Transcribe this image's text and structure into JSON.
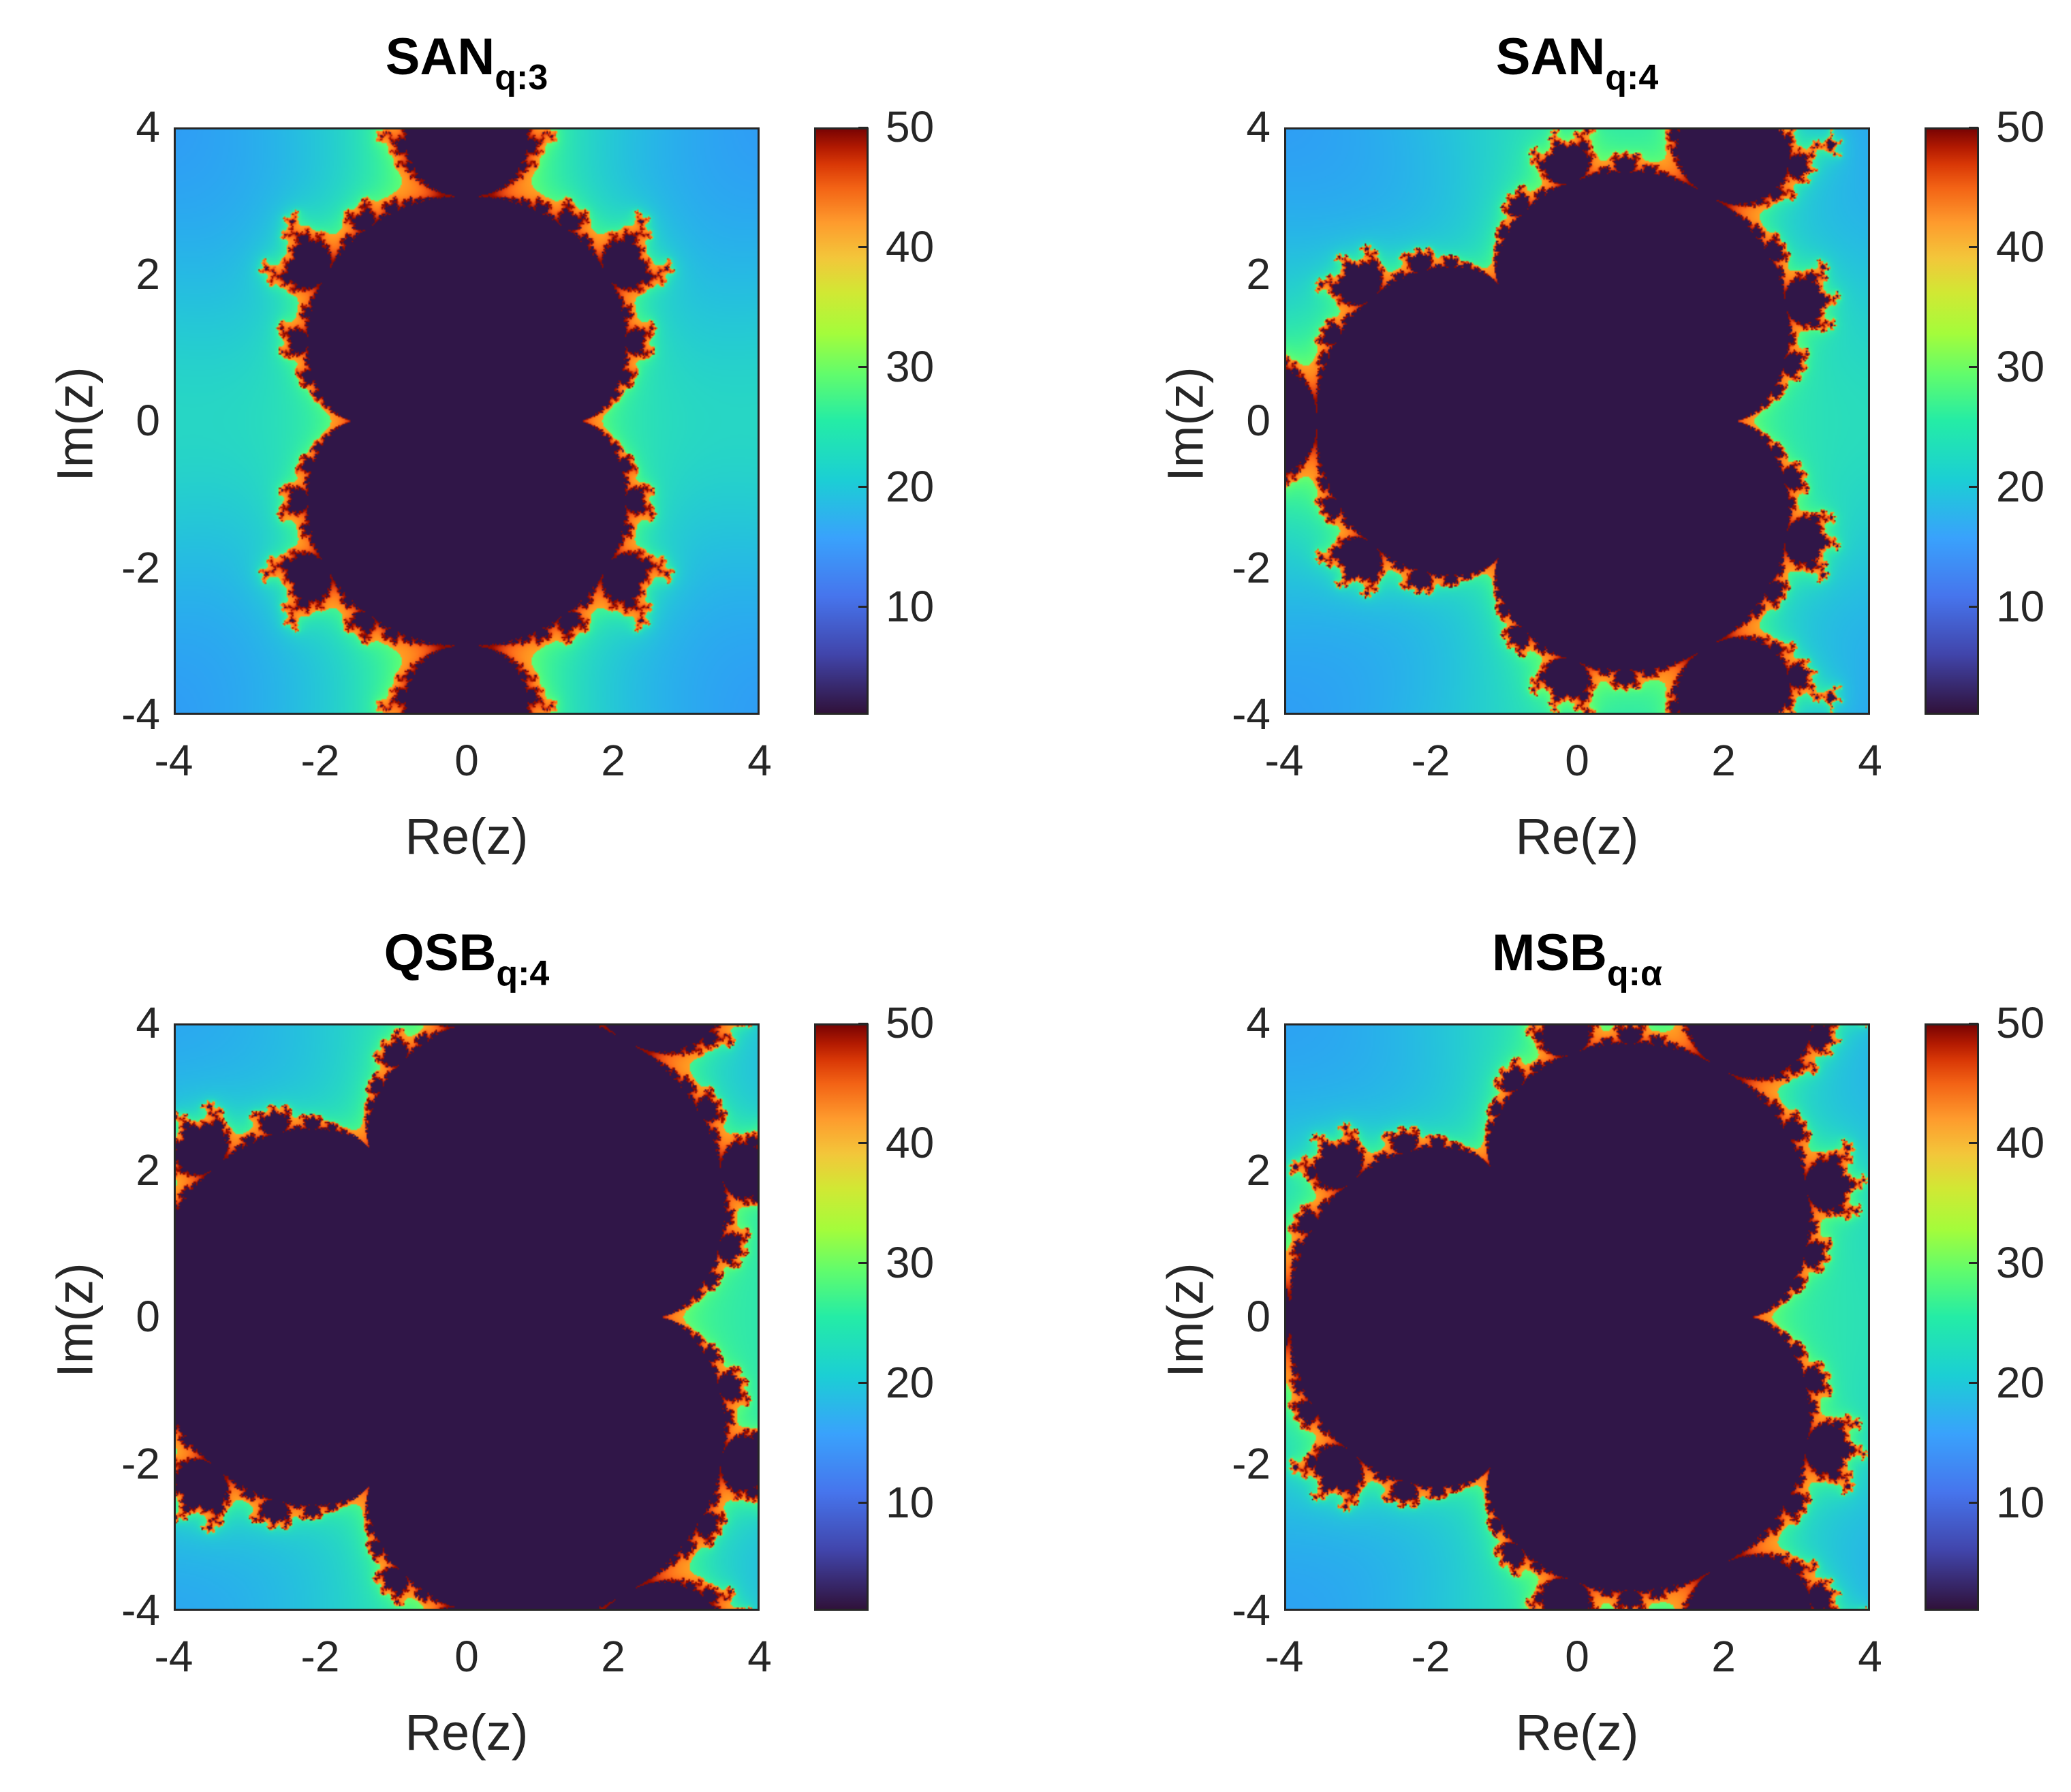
{
  "chart_data": [
    {
      "type": "heatmap",
      "title": "SAN",
      "title_subscript": "q:3",
      "xlabel": "Re(z)",
      "ylabel": "Im(z)",
      "xlim": [
        -4,
        4
      ],
      "ylim": [
        -4,
        4
      ],
      "xticks": [
        "-4",
        "-2",
        "0",
        "2",
        "4"
      ],
      "yticks": [
        "4",
        "2",
        "0",
        "-2",
        "-4"
      ],
      "colorbar": {
        "range": [
          1,
          50
        ],
        "ticks": [
          "50",
          "40",
          "30",
          "20",
          "10"
        ],
        "colormap": "turbo"
      },
      "variant": "san3"
    },
    {
      "type": "heatmap",
      "title": "SAN",
      "title_subscript": "q:4",
      "xlabel": "Re(z)",
      "ylabel": "Im(z)",
      "xlim": [
        -4,
        4
      ],
      "ylim": [
        -4,
        4
      ],
      "xticks": [
        "-4",
        "-2",
        "0",
        "2",
        "4"
      ],
      "yticks": [
        "4",
        "2",
        "0",
        "-2",
        "-4"
      ],
      "colorbar": {
        "range": [
          1,
          50
        ],
        "ticks": [
          "50",
          "40",
          "30",
          "20",
          "10"
        ],
        "colormap": "turbo"
      },
      "variant": "san4"
    },
    {
      "type": "heatmap",
      "title": "QSB",
      "title_subscript": "q:4",
      "xlabel": "Re(z)",
      "ylabel": "Im(z)",
      "xlim": [
        -4,
        4
      ],
      "ylim": [
        -4,
        4
      ],
      "xticks": [
        "-4",
        "-2",
        "0",
        "2",
        "4"
      ],
      "yticks": [
        "4",
        "2",
        "0",
        "-2",
        "-4"
      ],
      "colorbar": {
        "range": [
          1,
          50
        ],
        "ticks": [
          "50",
          "40",
          "30",
          "20",
          "10"
        ],
        "colormap": "turbo"
      },
      "variant": "qsb"
    },
    {
      "type": "heatmap",
      "title": "MSB",
      "title_subscript": "q:α",
      "xlabel": "Re(z)",
      "ylabel": "Im(z)",
      "xlim": [
        -4,
        4
      ],
      "ylim": [
        -4,
        4
      ],
      "xticks": [
        "-4",
        "-2",
        "0",
        "2",
        "4"
      ],
      "yticks": [
        "4",
        "2",
        "0",
        "-2",
        "-4"
      ],
      "colorbar": {
        "range": [
          1,
          50
        ],
        "ticks": [
          "50",
          "40",
          "30",
          "20",
          "10"
        ],
        "colormap": "turbo"
      },
      "variant": "msb"
    }
  ]
}
